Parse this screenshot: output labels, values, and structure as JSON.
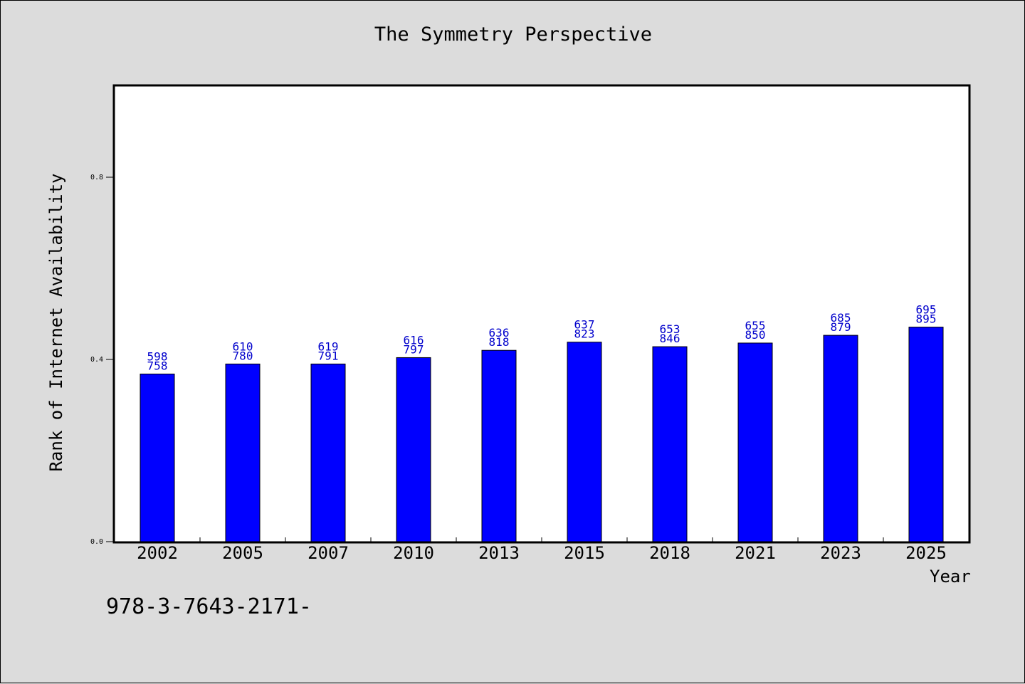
{
  "chart_data": {
    "type": "bar",
    "title": "The Symmetry Perspective",
    "xlabel": "Year",
    "ylabel": "Rank of Internet Availability",
    "categories": [
      "2002",
      "2005",
      "2007",
      "2010",
      "2013",
      "2015",
      "2018",
      "2021",
      "2023",
      "2025"
    ],
    "values": [
      0.368,
      0.39,
      0.39,
      0.404,
      0.42,
      0.438,
      0.428,
      0.436,
      0.453,
      0.471
    ],
    "annotations_top": [
      "598",
      "610",
      "619",
      "616",
      "636",
      "637",
      "653",
      "655",
      "685",
      "695"
    ],
    "annotations_bottom": [
      "758",
      "780",
      "791",
      "797",
      "818",
      "823",
      "846",
      "850",
      "879",
      "895"
    ],
    "ylim": [
      0,
      1.0
    ],
    "yticks": [
      "0.0",
      "0.4",
      "0.8"
    ],
    "ytick_values": [
      0.0,
      0.4,
      0.8
    ],
    "grid": false,
    "bar_color": "#0000ff",
    "label_color": "#0000cc"
  },
  "footer_text": "978-3-7643-2171-"
}
